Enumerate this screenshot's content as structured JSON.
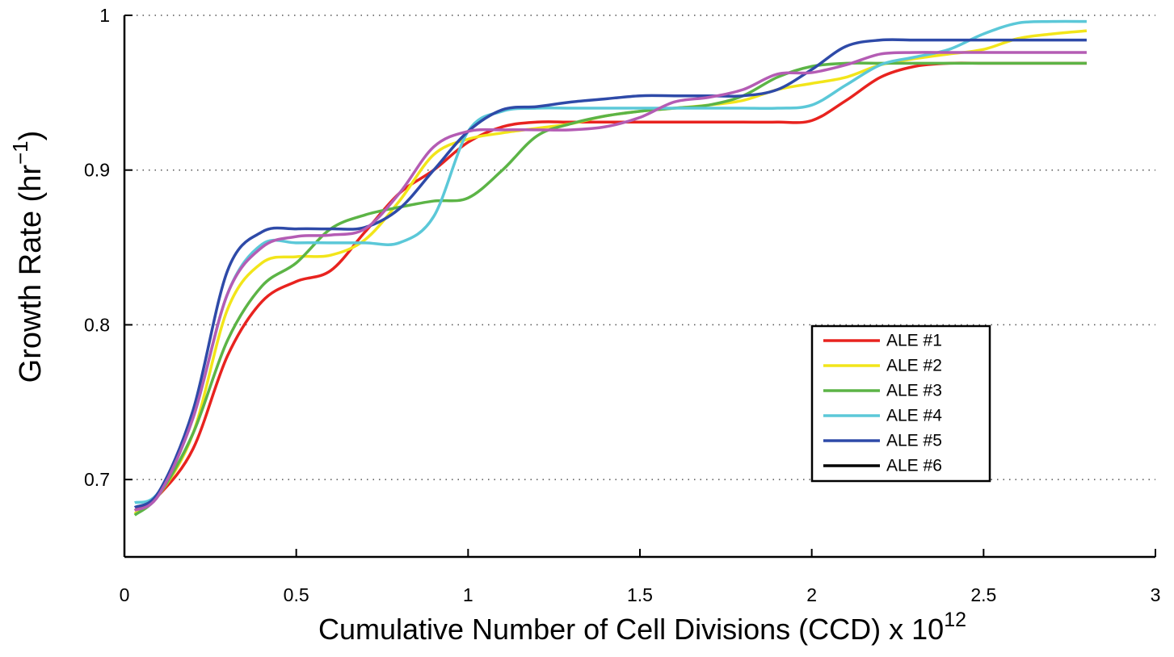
{
  "chart_data": {
    "type": "line",
    "x_label": {
      "text": "Cumulative Number of Cell Divisions (CCD) x 10",
      "superscript": "12"
    },
    "y_label": {
      "text": "Growth Rate (hr",
      "superscript": "−1",
      "suffix": ")"
    },
    "x": [
      0.03,
      0.1,
      0.2,
      0.3,
      0.4,
      0.5,
      0.6,
      0.7,
      0.8,
      0.9,
      1.0,
      1.1,
      1.2,
      1.3,
      1.4,
      1.5,
      1.6,
      1.7,
      1.8,
      1.9,
      2.0,
      2.1,
      2.2,
      2.3,
      2.4,
      2.5,
      2.6,
      2.7,
      2.8
    ],
    "series": [
      {
        "name": "ALE #1",
        "color": "#e8231f",
        "values": [
          0.68,
          0.69,
          0.72,
          0.78,
          0.815,
          0.828,
          0.835,
          0.86,
          0.885,
          0.9,
          0.918,
          0.928,
          0.931,
          0.931,
          0.931,
          0.931,
          0.931,
          0.931,
          0.931,
          0.931,
          0.932,
          0.945,
          0.96,
          0.967,
          0.969,
          0.969,
          0.969,
          0.969,
          0.969
        ]
      },
      {
        "name": "ALE #2",
        "color": "#f2e51a",
        "values": [
          0.678,
          0.69,
          0.73,
          0.81,
          0.84,
          0.844,
          0.845,
          0.855,
          0.88,
          0.91,
          0.92,
          0.924,
          0.927,
          0.93,
          0.935,
          0.938,
          0.94,
          0.942,
          0.945,
          0.952,
          0.956,
          0.96,
          0.968,
          0.972,
          0.975,
          0.978,
          0.985,
          0.988,
          0.99
        ]
      },
      {
        "name": "ALE #3",
        "color": "#5cb446",
        "values": [
          0.677,
          0.69,
          0.73,
          0.79,
          0.825,
          0.84,
          0.862,
          0.871,
          0.876,
          0.88,
          0.882,
          0.9,
          0.922,
          0.93,
          0.935,
          0.938,
          0.94,
          0.942,
          0.948,
          0.96,
          0.967,
          0.969,
          0.969,
          0.969,
          0.969,
          0.969,
          0.969,
          0.969,
          0.969
        ]
      },
      {
        "name": "ALE #4",
        "color": "#5bc8d8",
        "values": [
          0.685,
          0.692,
          0.74,
          0.82,
          0.852,
          0.853,
          0.853,
          0.853,
          0.853,
          0.87,
          0.925,
          0.938,
          0.94,
          0.94,
          0.94,
          0.94,
          0.94,
          0.94,
          0.94,
          0.94,
          0.942,
          0.955,
          0.968,
          0.973,
          0.978,
          0.988,
          0.995,
          0.996,
          0.996
        ]
      },
      {
        "name": "ALE #5",
        "color": "#2e4aa8",
        "values": [
          0.682,
          0.692,
          0.745,
          0.835,
          0.86,
          0.862,
          0.862,
          0.863,
          0.875,
          0.9,
          0.925,
          0.939,
          0.941,
          0.944,
          0.946,
          0.948,
          0.948,
          0.948,
          0.948,
          0.952,
          0.965,
          0.98,
          0.984,
          0.984,
          0.984,
          0.984,
          0.984,
          0.984,
          0.984
        ]
      },
      {
        "name": "ALE #6",
        "color": "#b45cb4",
        "legend_color": "#000000",
        "values": [
          0.68,
          0.69,
          0.74,
          0.82,
          0.85,
          0.857,
          0.858,
          0.862,
          0.885,
          0.915,
          0.925,
          0.926,
          0.926,
          0.926,
          0.928,
          0.934,
          0.944,
          0.947,
          0.952,
          0.962,
          0.963,
          0.968,
          0.975,
          0.976,
          0.976,
          0.976,
          0.976,
          0.976,
          0.976
        ]
      }
    ],
    "xlim": [
      0,
      3
    ],
    "ylim": [
      0.65,
      1
    ],
    "xticks": [
      0,
      0.5,
      1,
      1.5,
      2,
      2.5,
      3
    ],
    "yticks": [
      0.7,
      0.8,
      0.9,
      1
    ],
    "grid": "y-dotted",
    "legend_position": "lower right"
  }
}
